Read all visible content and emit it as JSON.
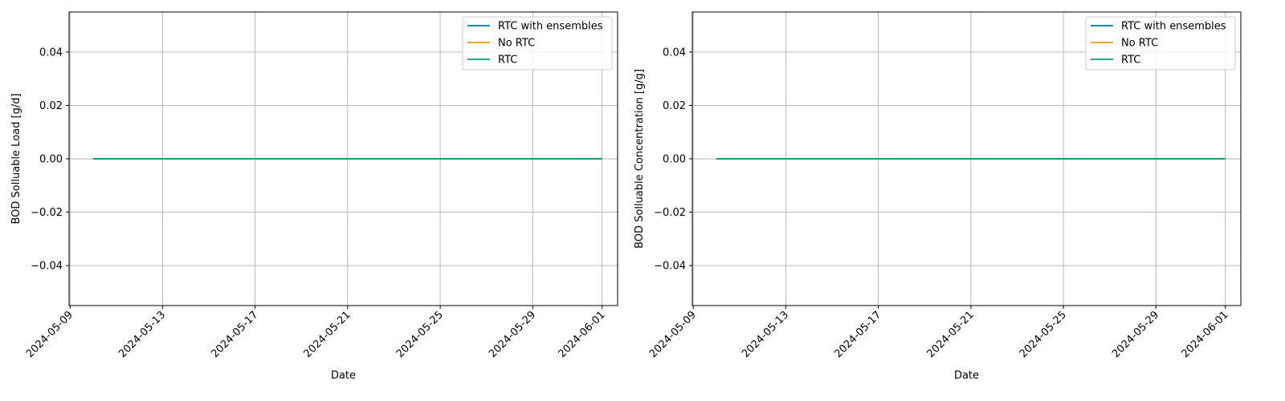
{
  "chart_data": [
    {
      "type": "line",
      "title": "",
      "xlabel": "Date",
      "ylabel": "BOD Solluable Load [g/d]",
      "x_range": [
        "2024-05-08T23:02:00",
        "2024-06-01T16:02:00"
      ],
      "ylim": [
        -0.055,
        0.055
      ],
      "x_ticks": [
        "2024-05-09",
        "2024-05-13",
        "2024-05-17",
        "2024-05-21",
        "2024-05-25",
        "2024-05-29",
        "2024-06-01"
      ],
      "y_ticks": [
        -0.04,
        -0.02,
        0.0,
        0.02,
        0.04
      ],
      "y_tick_labels": [
        "−0.04",
        "−0.02",
        "0.00",
        "0.02",
        "0.04"
      ],
      "grid": true,
      "legend_position": "top-right",
      "series": [
        {
          "name": "RTC with ensembles",
          "color": "#0072b2",
          "x": [
            "2024-05-10",
            "2024-06-01"
          ],
          "y": [
            0,
            0
          ]
        },
        {
          "name": "No RTC",
          "color": "#e69f00",
          "x": [
            "2024-05-10",
            "2024-06-01"
          ],
          "y": [
            0,
            0
          ]
        },
        {
          "name": "RTC",
          "color": "#009e73",
          "x": [
            "2024-05-10",
            "2024-06-01"
          ],
          "y": [
            0,
            0
          ]
        }
      ]
    },
    {
      "type": "line",
      "title": "",
      "xlabel": "Date",
      "ylabel": "BOD Solluable Concentration [g/g]",
      "x_range": [
        "2024-05-08T23:02:00",
        "2024-06-01T16:02:00"
      ],
      "ylim": [
        -0.055,
        0.055
      ],
      "x_ticks": [
        "2024-05-09",
        "2024-05-13",
        "2024-05-17",
        "2024-05-21",
        "2024-05-25",
        "2024-05-29",
        "2024-06-01"
      ],
      "y_ticks": [
        -0.04,
        -0.02,
        0.0,
        0.02,
        0.04
      ],
      "y_tick_labels": [
        "−0.04",
        "−0.02",
        "0.00",
        "0.02",
        "0.04"
      ],
      "grid": true,
      "legend_position": "top-right",
      "series": [
        {
          "name": "RTC with ensembles",
          "color": "#0072b2",
          "x": [
            "2024-05-10",
            "2024-06-01"
          ],
          "y": [
            0,
            0
          ]
        },
        {
          "name": "No RTC",
          "color": "#e69f00",
          "x": [
            "2024-05-10",
            "2024-06-01"
          ],
          "y": [
            0,
            0
          ]
        },
        {
          "name": "RTC",
          "color": "#009e73",
          "x": [
            "2024-05-10",
            "2024-06-01"
          ],
          "y": [
            0,
            0
          ]
        }
      ]
    }
  ]
}
